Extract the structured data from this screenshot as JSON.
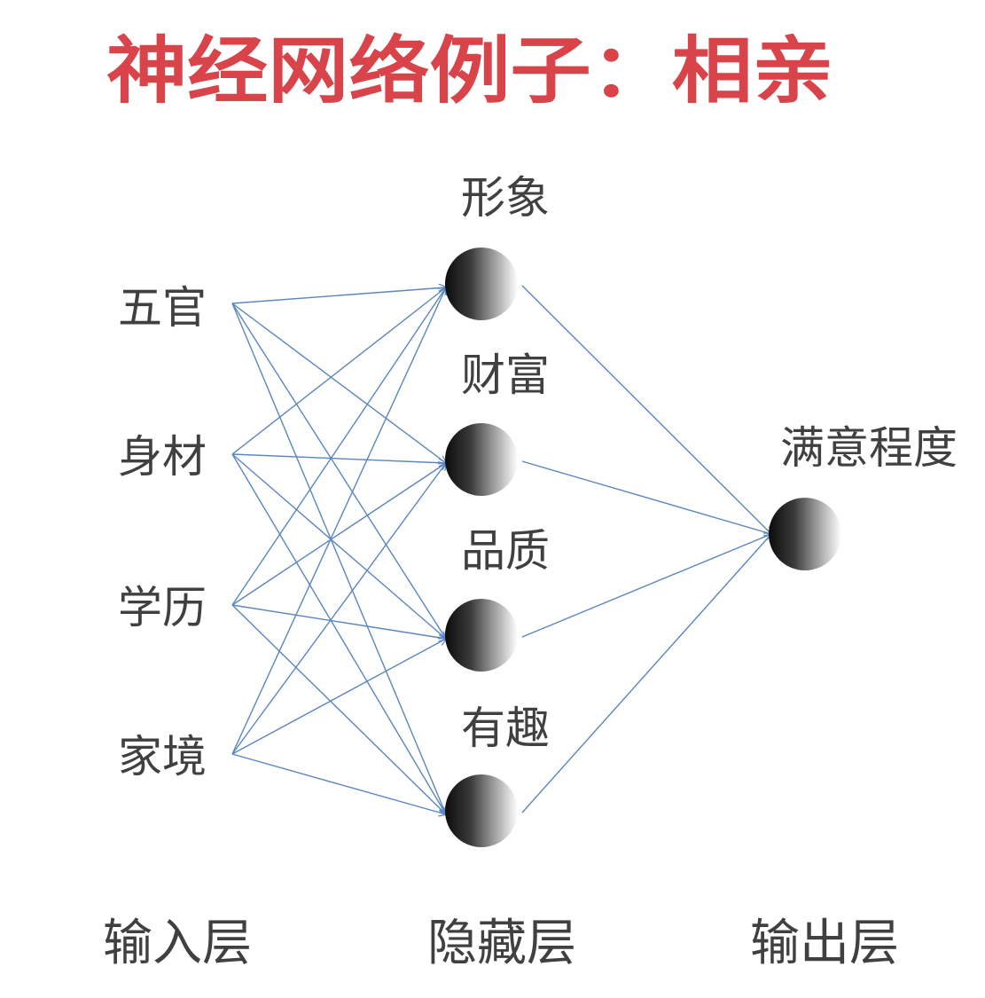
{
  "title": "神经网络例子：相亲",
  "colors": {
    "title": "#d9434a",
    "text": "#404040",
    "edge": "#5b86c0"
  },
  "layers": {
    "input": {
      "label": "输入层",
      "nodes": [
        "五官",
        "身材",
        "学历",
        "家境"
      ]
    },
    "hidden": {
      "label": "隐藏层",
      "nodes": [
        "形象",
        "财富",
        "品质",
        "有趣"
      ]
    },
    "output": {
      "label": "输出层",
      "nodes": [
        "满意程度"
      ]
    }
  }
}
